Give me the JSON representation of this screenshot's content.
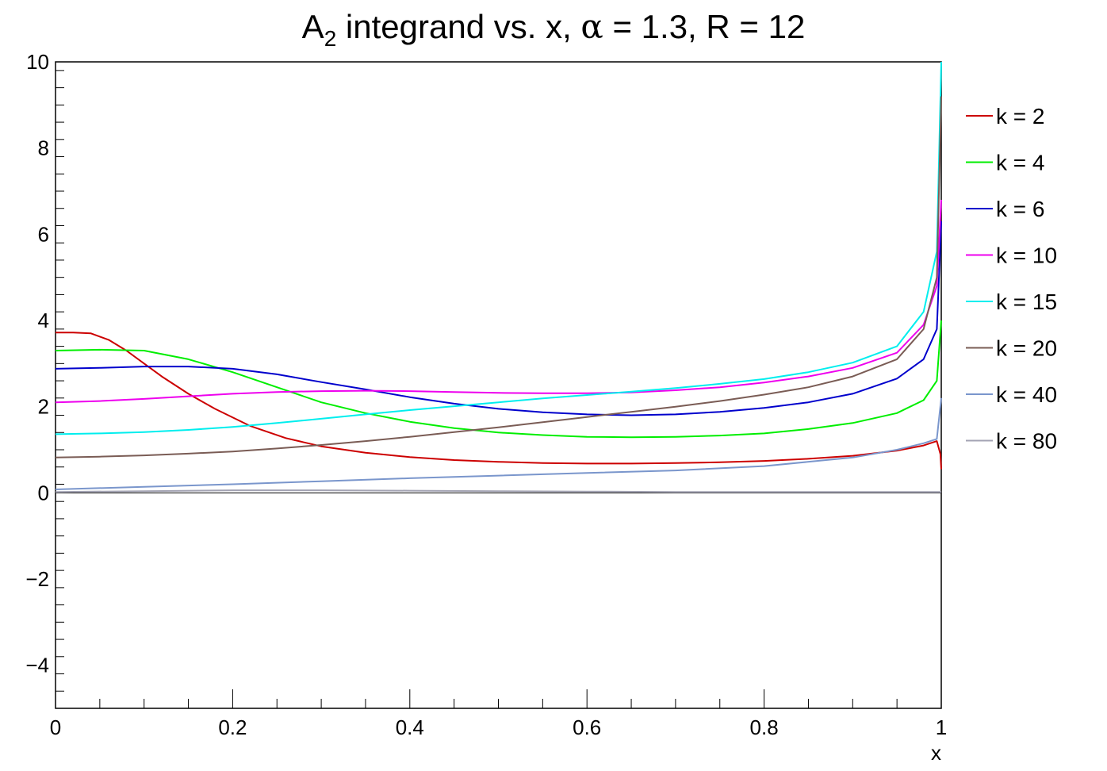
{
  "chart_data": {
    "type": "line",
    "title": {
      "prefix": "A",
      "subscript": "2",
      "rest": " integrand vs. x, ",
      "alpha_symbol": "α",
      "params": " = 1.3, R = 12"
    },
    "xlabel": "x",
    "ylabel": "",
    "xlim": [
      0,
      1
    ],
    "ylim": [
      -5,
      10
    ],
    "x_ticks": [
      0,
      0.2,
      0.4,
      0.6,
      0.8,
      1
    ],
    "x_tick_labels": [
      "0",
      "0.2",
      "0.4",
      "0.6",
      "0.8",
      "1"
    ],
    "y_ticks": [
      -4,
      -2,
      0,
      2,
      4,
      6,
      8,
      10
    ],
    "y_tick_labels": [
      "−4",
      "−2",
      "0",
      "2",
      "4",
      "6",
      "8",
      "10"
    ],
    "grid": false,
    "legend_position": "right",
    "series": [
      {
        "name": "k = 2",
        "color": "#cc0000",
        "points": [
          [
            0,
            3.72
          ],
          [
            0.02,
            3.72
          ],
          [
            0.04,
            3.7
          ],
          [
            0.06,
            3.55
          ],
          [
            0.08,
            3.3
          ],
          [
            0.1,
            3.0
          ],
          [
            0.12,
            2.7
          ],
          [
            0.15,
            2.3
          ],
          [
            0.18,
            1.95
          ],
          [
            0.22,
            1.55
          ],
          [
            0.26,
            1.27
          ],
          [
            0.3,
            1.08
          ],
          [
            0.35,
            0.93
          ],
          [
            0.4,
            0.83
          ],
          [
            0.45,
            0.76
          ],
          [
            0.5,
            0.72
          ],
          [
            0.55,
            0.69
          ],
          [
            0.6,
            0.68
          ],
          [
            0.65,
            0.68
          ],
          [
            0.7,
            0.69
          ],
          [
            0.75,
            0.71
          ],
          [
            0.8,
            0.74
          ],
          [
            0.85,
            0.79
          ],
          [
            0.9,
            0.86
          ],
          [
            0.95,
            0.98
          ],
          [
            0.98,
            1.1
          ],
          [
            0.995,
            1.2
          ],
          [
            0.999,
            0.9
          ],
          [
            1.0,
            0.55
          ]
        ]
      },
      {
        "name": "k = 4",
        "color": "#00ee00",
        "points": [
          [
            0,
            3.3
          ],
          [
            0.05,
            3.32
          ],
          [
            0.1,
            3.3
          ],
          [
            0.15,
            3.1
          ],
          [
            0.2,
            2.8
          ],
          [
            0.25,
            2.45
          ],
          [
            0.3,
            2.1
          ],
          [
            0.35,
            1.85
          ],
          [
            0.4,
            1.65
          ],
          [
            0.45,
            1.5
          ],
          [
            0.5,
            1.4
          ],
          [
            0.55,
            1.34
          ],
          [
            0.6,
            1.3
          ],
          [
            0.65,
            1.29
          ],
          [
            0.7,
            1.3
          ],
          [
            0.75,
            1.33
          ],
          [
            0.8,
            1.38
          ],
          [
            0.85,
            1.48
          ],
          [
            0.9,
            1.62
          ],
          [
            0.95,
            1.85
          ],
          [
            0.98,
            2.15
          ],
          [
            0.995,
            2.6
          ],
          [
            1.0,
            4.0
          ]
        ]
      },
      {
        "name": "k = 6",
        "color": "#0000cc",
        "points": [
          [
            0,
            2.88
          ],
          [
            0.05,
            2.9
          ],
          [
            0.1,
            2.93
          ],
          [
            0.15,
            2.93
          ],
          [
            0.2,
            2.88
          ],
          [
            0.25,
            2.75
          ],
          [
            0.3,
            2.57
          ],
          [
            0.35,
            2.4
          ],
          [
            0.4,
            2.22
          ],
          [
            0.45,
            2.07
          ],
          [
            0.5,
            1.95
          ],
          [
            0.55,
            1.87
          ],
          [
            0.6,
            1.82
          ],
          [
            0.65,
            1.8
          ],
          [
            0.7,
            1.82
          ],
          [
            0.75,
            1.88
          ],
          [
            0.8,
            1.97
          ],
          [
            0.85,
            2.1
          ],
          [
            0.9,
            2.3
          ],
          [
            0.95,
            2.65
          ],
          [
            0.98,
            3.1
          ],
          [
            0.995,
            3.8
          ],
          [
            1.0,
            6.3
          ]
        ]
      },
      {
        "name": "k = 10",
        "color": "#ee00ee",
        "points": [
          [
            0,
            2.1
          ],
          [
            0.05,
            2.13
          ],
          [
            0.1,
            2.18
          ],
          [
            0.15,
            2.24
          ],
          [
            0.2,
            2.3
          ],
          [
            0.25,
            2.34
          ],
          [
            0.3,
            2.36
          ],
          [
            0.35,
            2.37
          ],
          [
            0.4,
            2.36
          ],
          [
            0.45,
            2.34
          ],
          [
            0.5,
            2.32
          ],
          [
            0.55,
            2.31
          ],
          [
            0.6,
            2.31
          ],
          [
            0.65,
            2.33
          ],
          [
            0.7,
            2.38
          ],
          [
            0.75,
            2.45
          ],
          [
            0.8,
            2.56
          ],
          [
            0.85,
            2.7
          ],
          [
            0.9,
            2.9
          ],
          [
            0.95,
            3.25
          ],
          [
            0.98,
            3.9
          ],
          [
            0.995,
            4.8
          ],
          [
            1.0,
            6.8
          ]
        ]
      },
      {
        "name": "k = 15",
        "color": "#00eeee",
        "points": [
          [
            0,
            1.36
          ],
          [
            0.05,
            1.38
          ],
          [
            0.1,
            1.41
          ],
          [
            0.15,
            1.46
          ],
          [
            0.2,
            1.53
          ],
          [
            0.25,
            1.62
          ],
          [
            0.3,
            1.72
          ],
          [
            0.35,
            1.82
          ],
          [
            0.4,
            1.92
          ],
          [
            0.45,
            2.01
          ],
          [
            0.5,
            2.1
          ],
          [
            0.55,
            2.19
          ],
          [
            0.6,
            2.27
          ],
          [
            0.65,
            2.35
          ],
          [
            0.7,
            2.43
          ],
          [
            0.75,
            2.53
          ],
          [
            0.8,
            2.64
          ],
          [
            0.85,
            2.8
          ],
          [
            0.9,
            3.02
          ],
          [
            0.95,
            3.4
          ],
          [
            0.98,
            4.2
          ],
          [
            0.995,
            5.6
          ],
          [
            1.0,
            10.0
          ]
        ]
      },
      {
        "name": "k = 20",
        "color": "#7a5c55",
        "points": [
          [
            0,
            0.82
          ],
          [
            0.05,
            0.84
          ],
          [
            0.1,
            0.87
          ],
          [
            0.15,
            0.91
          ],
          [
            0.2,
            0.96
          ],
          [
            0.25,
            1.03
          ],
          [
            0.3,
            1.11
          ],
          [
            0.35,
            1.2
          ],
          [
            0.4,
            1.3
          ],
          [
            0.45,
            1.41
          ],
          [
            0.5,
            1.52
          ],
          [
            0.55,
            1.64
          ],
          [
            0.6,
            1.76
          ],
          [
            0.65,
            1.88
          ],
          [
            0.7,
            2.0
          ],
          [
            0.75,
            2.13
          ],
          [
            0.8,
            2.28
          ],
          [
            0.85,
            2.45
          ],
          [
            0.9,
            2.7
          ],
          [
            0.95,
            3.1
          ],
          [
            0.98,
            3.8
          ],
          [
            0.995,
            5.0
          ],
          [
            1.0,
            9.2
          ]
        ]
      },
      {
        "name": "k = 40",
        "color": "#7a96cc",
        "points": [
          [
            0,
            0.08
          ],
          [
            0.1,
            0.14
          ],
          [
            0.2,
            0.2
          ],
          [
            0.3,
            0.27
          ],
          [
            0.4,
            0.34
          ],
          [
            0.5,
            0.4
          ],
          [
            0.6,
            0.46
          ],
          [
            0.7,
            0.52
          ],
          [
            0.8,
            0.62
          ],
          [
            0.9,
            0.82
          ],
          [
            0.95,
            1.0
          ],
          [
            0.98,
            1.15
          ],
          [
            0.995,
            1.25
          ],
          [
            1.0,
            2.2
          ]
        ]
      },
      {
        "name": "k = 80",
        "color": "#a3a3b3",
        "points": [
          [
            0,
            0.02
          ],
          [
            0.1,
            0.04
          ],
          [
            0.2,
            0.06
          ],
          [
            0.3,
            0.06
          ],
          [
            0.4,
            0.05
          ],
          [
            0.5,
            0.04
          ],
          [
            0.6,
            0.03
          ],
          [
            0.7,
            0.02
          ],
          [
            0.8,
            0.02
          ],
          [
            0.9,
            0.02
          ],
          [
            1.0,
            0.02
          ]
        ]
      }
    ]
  }
}
